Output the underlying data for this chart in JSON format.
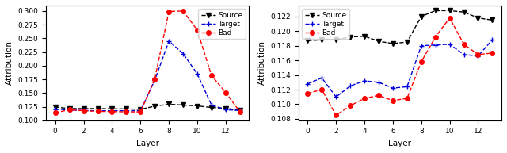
{
  "left": {
    "layers": [
      0,
      1,
      2,
      3,
      4,
      5,
      6,
      7,
      8,
      9,
      10,
      11,
      12,
      13
    ],
    "source": [
      0.1245,
      0.1215,
      0.1215,
      0.1215,
      0.121,
      0.121,
      0.12,
      0.126,
      0.1295,
      0.128,
      0.1265,
      0.1235,
      0.122,
      0.1185
    ],
    "target": [
      0.1205,
      0.119,
      0.118,
      0.1175,
      0.1175,
      0.1175,
      0.1175,
      0.173,
      0.245,
      0.222,
      0.185,
      0.128,
      0.1195,
      0.118
    ],
    "bad": [
      0.114,
      0.1195,
      0.1175,
      0.1165,
      0.116,
      0.1155,
      0.1155,
      0.175,
      0.299,
      0.3,
      0.265,
      0.182,
      0.151,
      0.1155
    ],
    "ylabel": "Attribution",
    "xlabel": "Layer",
    "ylim": [
      0.1,
      0.31
    ],
    "yticks": [
      0.1,
      0.125,
      0.15,
      0.175,
      0.2,
      0.225,
      0.25,
      0.275,
      0.3
    ],
    "xticks": [
      0,
      2,
      4,
      6,
      8,
      10,
      12
    ]
  },
  "right": {
    "layers": [
      0,
      1,
      2,
      3,
      4,
      5,
      6,
      7,
      8,
      9,
      10,
      11,
      12,
      13
    ],
    "source": [
      0.1187,
      0.1188,
      0.1188,
      0.1192,
      0.1193,
      0.1186,
      0.1183,
      0.1185,
      0.122,
      0.1228,
      0.1228,
      0.1226,
      0.1218,
      0.1215
    ],
    "target": [
      0.1128,
      0.1136,
      0.111,
      0.1125,
      0.1132,
      0.113,
      0.1122,
      0.1124,
      0.118,
      0.1181,
      0.1182,
      0.1168,
      0.1166,
      0.1188
    ],
    "bad": [
      0.1115,
      0.112,
      0.1085,
      0.1098,
      0.1108,
      0.1112,
      0.1105,
      0.1108,
      0.1158,
      0.1192,
      0.1218,
      0.1182,
      0.1168,
      0.117
    ],
    "ylabel": "Attribution",
    "xlabel": "Layer",
    "ylim": [
      0.1078,
      0.1235
    ],
    "yticks": [
      0.108,
      0.11,
      0.112,
      0.114,
      0.116,
      0.118,
      0.12,
      0.122
    ],
    "xticks": [
      0,
      2,
      4,
      6,
      8,
      10,
      12
    ]
  },
  "source_color": "black",
  "target_color": "#0000dd",
  "bad_color": "red",
  "source_marker": "v",
  "target_marker": "P",
  "bad_marker": "o",
  "linestyle": "--",
  "linewidth": 1.0,
  "markersize_v": 4,
  "markersize_o": 4,
  "markersize_plus": 5,
  "legend_fontsize": 6.5,
  "tick_fontsize": 6.5,
  "axis_fontsize": 7.5
}
